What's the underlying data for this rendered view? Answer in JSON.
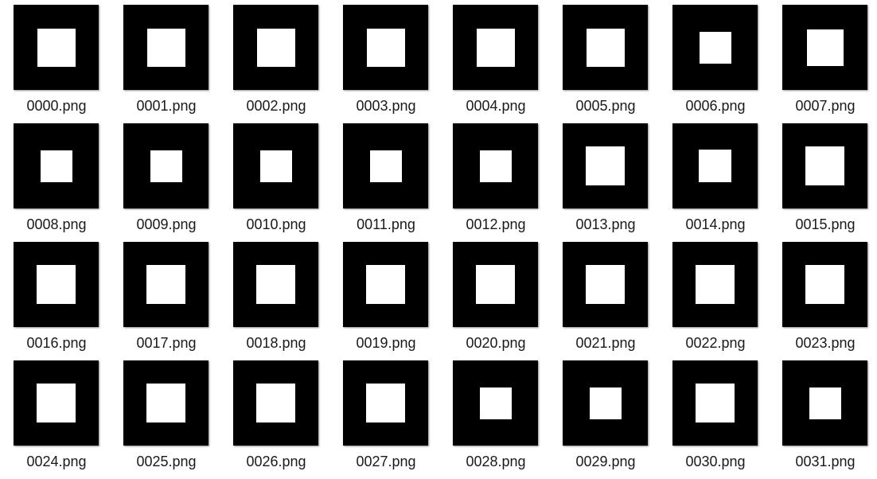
{
  "files": [
    {
      "name": "0000.png",
      "square_fraction": 0.45
    },
    {
      "name": "0001.png",
      "square_fraction": 0.45
    },
    {
      "name": "0002.png",
      "square_fraction": 0.45
    },
    {
      "name": "0003.png",
      "square_fraction": 0.45
    },
    {
      "name": "0004.png",
      "square_fraction": 0.45
    },
    {
      "name": "0005.png",
      "square_fraction": 0.45
    },
    {
      "name": "0006.png",
      "square_fraction": 0.37
    },
    {
      "name": "0007.png",
      "square_fraction": 0.43
    },
    {
      "name": "0008.png",
      "square_fraction": 0.37
    },
    {
      "name": "0009.png",
      "square_fraction": 0.37
    },
    {
      "name": "0010.png",
      "square_fraction": 0.37
    },
    {
      "name": "0011.png",
      "square_fraction": 0.37
    },
    {
      "name": "0012.png",
      "square_fraction": 0.37
    },
    {
      "name": "0013.png",
      "square_fraction": 0.46
    },
    {
      "name": "0014.png",
      "square_fraction": 0.38
    },
    {
      "name": "0015.png",
      "square_fraction": 0.46
    },
    {
      "name": "0016.png",
      "square_fraction": 0.46
    },
    {
      "name": "0017.png",
      "square_fraction": 0.46
    },
    {
      "name": "0018.png",
      "square_fraction": 0.46
    },
    {
      "name": "0019.png",
      "square_fraction": 0.46
    },
    {
      "name": "0020.png",
      "square_fraction": 0.46
    },
    {
      "name": "0021.png",
      "square_fraction": 0.46
    },
    {
      "name": "0022.png",
      "square_fraction": 0.46
    },
    {
      "name": "0023.png",
      "square_fraction": 0.46
    },
    {
      "name": "0024.png",
      "square_fraction": 0.46
    },
    {
      "name": "0025.png",
      "square_fraction": 0.46
    },
    {
      "name": "0026.png",
      "square_fraction": 0.46
    },
    {
      "name": "0027.png",
      "square_fraction": 0.46
    },
    {
      "name": "0028.png",
      "square_fraction": 0.37
    },
    {
      "name": "0029.png",
      "square_fraction": 0.37
    },
    {
      "name": "0030.png",
      "square_fraction": 0.46
    },
    {
      "name": "0031.png",
      "square_fraction": 0.37
    }
  ],
  "colors": {
    "thumb_background": "#000000",
    "thumb_square": "#ffffff",
    "label_text": "#1a1a1a"
  }
}
